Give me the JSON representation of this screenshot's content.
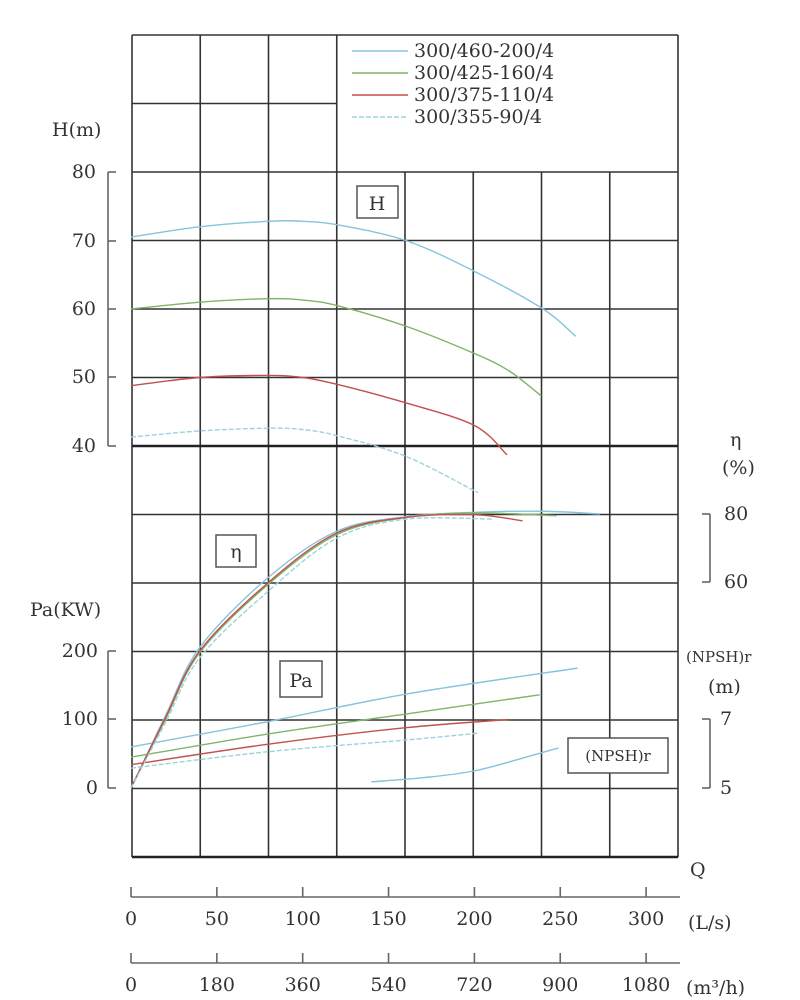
{
  "chart_data": {
    "type": "line",
    "title": "",
    "legend": {
      "placement": "top-right"
    },
    "grid": true,
    "x_axis": {
      "label": "Q",
      "range": [
        0,
        318
      ],
      "units_primary": "(L/s)",
      "ticks_primary": [
        "0",
        "50",
        "100",
        "150",
        "200",
        "250",
        "300"
      ],
      "units_secondary": "(m³/h)",
      "ticks_secondary": [
        "0",
        "180",
        "360",
        "540",
        "720",
        "900",
        "1080"
      ]
    },
    "y_axes": {
      "H": {
        "label": "H(m)",
        "range": [
          40,
          80
        ],
        "ticks": [
          "80",
          "70",
          "60",
          "50",
          "40"
        ],
        "curve_label": "H"
      },
      "eta": {
        "label_symbol": "η",
        "label_unit": "(%)",
        "range": [
          60,
          80
        ],
        "ticks": [
          "80",
          "60"
        ],
        "curve_label": "η"
      },
      "Pa": {
        "label": "Pa(KW)",
        "range": [
          0,
          200
        ],
        "ticks": [
          "200",
          "100",
          "0"
        ],
        "curve_label": "Pa"
      },
      "NPSH": {
        "label": "(NPSH)r",
        "label_unit": "(m)",
        "range": [
          5,
          7
        ],
        "ticks": [
          "7",
          "5"
        ],
        "curve_label": "(NPSH)r"
      }
    },
    "series": [
      {
        "name": "300/460-200/4",
        "color": "#86c3de",
        "dash": "",
        "H": [
          [
            0,
            70.5
          ],
          [
            40,
            72
          ],
          [
            80,
            72.8
          ],
          [
            100,
            72.8
          ],
          [
            120,
            72.3
          ],
          [
            160,
            70
          ],
          [
            200,
            65.5
          ],
          [
            240,
            60
          ],
          [
            259,
            56
          ]
        ],
        "eta": [
          [
            0,
            0
          ],
          [
            20,
            21
          ],
          [
            40,
            41
          ],
          [
            80,
            61.5
          ],
          [
            120,
            75
          ],
          [
            160,
            79.2
          ],
          [
            200,
            80.5
          ],
          [
            240,
            80.8
          ],
          [
            273,
            80
          ]
        ],
        "Pa": [
          [
            0,
            60
          ],
          [
            80,
            97
          ],
          [
            160,
            137
          ],
          [
            260,
            175
          ]
        ]
      },
      {
        "name": "300/425-160/4",
        "color": "#7fb469",
        "dash": "",
        "H": [
          [
            0,
            60
          ],
          [
            40,
            61
          ],
          [
            80,
            61.5
          ],
          [
            100,
            61.3
          ],
          [
            120,
            60.5
          ],
          [
            160,
            57.5
          ],
          [
            200,
            53.5
          ],
          [
            220,
            51
          ],
          [
            239,
            47.3
          ]
        ],
        "eta": [
          [
            0,
            0
          ],
          [
            20,
            20
          ],
          [
            40,
            39.5
          ],
          [
            80,
            59.5
          ],
          [
            120,
            74
          ],
          [
            160,
            79
          ],
          [
            200,
            80.3
          ],
          [
            248,
            79.5
          ]
        ],
        "Pa": [
          [
            0,
            45
          ],
          [
            80,
            79
          ],
          [
            160,
            108
          ],
          [
            238,
            136
          ]
        ]
      },
      {
        "name": "300/375-110/4",
        "color": "#c2504d",
        "dash": "",
        "H": [
          [
            0,
            48.8
          ],
          [
            40,
            50
          ],
          [
            80,
            50.3
          ],
          [
            100,
            50
          ],
          [
            120,
            49
          ],
          [
            160,
            46.3
          ],
          [
            200,
            43
          ],
          [
            219,
            38.7
          ]
        ],
        "eta": [
          [
            0,
            0
          ],
          [
            20,
            20.5
          ],
          [
            40,
            40
          ],
          [
            80,
            60
          ],
          [
            120,
            74.5
          ],
          [
            160,
            79
          ],
          [
            200,
            79.8
          ],
          [
            228,
            78
          ]
        ],
        "Pa": [
          [
            0,
            34
          ],
          [
            80,
            64
          ],
          [
            160,
            88
          ],
          [
            220,
            100
          ]
        ]
      },
      {
        "name": "300/355-90/4",
        "color": "#9dd3dc",
        "dash": "5 2",
        "H": [
          [
            0,
            41.3
          ],
          [
            40,
            42.2
          ],
          [
            80,
            42.6
          ],
          [
            100,
            42.4
          ],
          [
            120,
            41.5
          ],
          [
            160,
            38.5
          ],
          [
            202,
            33.2
          ]
        ],
        "eta": [
          [
            0,
            0
          ],
          [
            20,
            19
          ],
          [
            40,
            38
          ],
          [
            80,
            57.5
          ],
          [
            120,
            73
          ],
          [
            160,
            78.5
          ],
          [
            211,
            78.5
          ]
        ],
        "Pa": [
          [
            0,
            29
          ],
          [
            80,
            53
          ],
          [
            160,
            70
          ],
          [
            202,
            80
          ]
        ]
      }
    ],
    "npsh_curve": {
      "color": "#86c3de",
      "points": [
        [
          140,
          5.18
        ],
        [
          170,
          5.3
        ],
        [
          200,
          5.5
        ],
        [
          230,
          5.9
        ],
        [
          249,
          6.17
        ]
      ]
    }
  }
}
